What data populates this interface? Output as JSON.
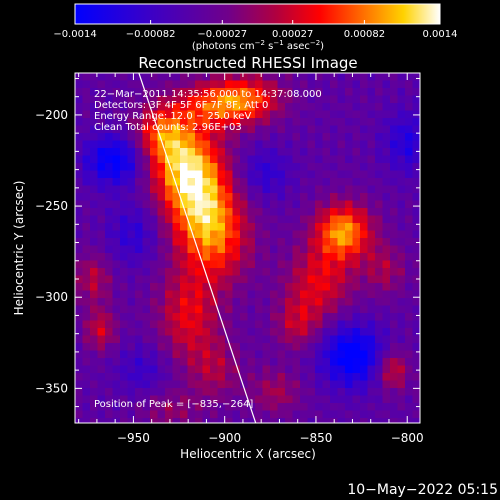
{
  "chart_data": {
    "type": "heatmap",
    "title": "Reconstructed RHESSI Image",
    "xlabel": "Heliocentric X (arcsec)",
    "ylabel": "Heliocentric Y (arcsec)",
    "xlim": [
      -982,
      -793
    ],
    "ylim": [
      -369,
      -177
    ],
    "x_ticks": [
      -950,
      -900,
      -850,
      -800
    ],
    "x_tick_labels": [
      "−950",
      "−900",
      "−850",
      "−800"
    ],
    "y_ticks": [
      -200,
      -250,
      -300,
      -350
    ],
    "y_tick_labels": [
      "−200",
      "−250",
      "−300",
      "−350"
    ],
    "colorbar": {
      "min": -0.0014,
      "max": 0.0014,
      "tick_values": [
        -0.0014,
        -0.00082,
        -0.00027,
        0.00027,
        0.00082,
        0.0014
      ],
      "tick_labels": [
        "−0.0014",
        "−0.00082",
        "−0.00027",
        "0.00027",
        "0.00082",
        "0.0014"
      ],
      "unit_parts": [
        "(photons cm",
        "−2",
        " s",
        "−1",
        " asec",
        "−2",
        ")"
      ]
    },
    "annotations": [
      "22−Mar−2011 14:35:56.000 to 14:37:08.000",
      "Detectors: 3F 4F 5F 6F 7F 8F, Att 0",
      "Energy Range: 12.0 − 25.0 keV",
      "Clean    Total counts: 2.96E+03"
    ],
    "peak_label": "Position of Peak = [−835,−264]",
    "peak": [
      -835,
      -264
    ],
    "peak_value": 0.0014,
    "limb_line": [
      [
        -947,
        -177
      ],
      [
        -883,
        -369
      ]
    ],
    "components": [
      {
        "x": -915,
        "y": -245,
        "sx": 13,
        "sy": 20,
        "amp": 0.0013
      },
      {
        "x": -925,
        "y": -225,
        "sx": 14,
        "sy": 15,
        "amp": 0.001
      },
      {
        "x": -935,
        "y": -210,
        "sx": 10,
        "sy": 10,
        "amp": 0.0008
      },
      {
        "x": -905,
        "y": -195,
        "sx": 18,
        "sy": 9,
        "amp": 0.0009
      },
      {
        "x": -888,
        "y": -190,
        "sx": 14,
        "sy": 9,
        "amp": 0.0008
      },
      {
        "x": -903,
        "y": -268,
        "sx": 13,
        "sy": 18,
        "amp": 0.0009
      },
      {
        "x": -920,
        "y": -310,
        "sx": 12,
        "sy": 18,
        "amp": 0.0008
      },
      {
        "x": -905,
        "y": -340,
        "sx": 10,
        "sy": 12,
        "amp": 0.0005
      },
      {
        "x": -835,
        "y": -264,
        "sx": 11,
        "sy": 11,
        "amp": 0.0014
      },
      {
        "x": -848,
        "y": -292,
        "sx": 13,
        "sy": 14,
        "amp": 0.0008
      },
      {
        "x": -860,
        "y": -315,
        "sx": 9,
        "sy": 10,
        "amp": 0.0006
      },
      {
        "x": -872,
        "y": -352,
        "sx": 10,
        "sy": 9,
        "amp": 0.0005
      },
      {
        "x": -808,
        "y": -340,
        "sx": 6,
        "sy": 8,
        "amp": 0.0008
      },
      {
        "x": -812,
        "y": -285,
        "sx": 8,
        "sy": 10,
        "amp": 0.0005
      },
      {
        "x": -972,
        "y": -290,
        "sx": 7,
        "sy": 10,
        "amp": 0.0006
      },
      {
        "x": -968,
        "y": -318,
        "sx": 6,
        "sy": 8,
        "amp": 0.0007
      },
      {
        "x": -930,
        "y": -362,
        "sx": 12,
        "sy": 8,
        "amp": 0.0004
      },
      {
        "x": -960,
        "y": -225,
        "sx": 12,
        "sy": 10,
        "amp": -0.001
      },
      {
        "x": -950,
        "y": -265,
        "sx": 10,
        "sy": 12,
        "amp": -0.0005
      },
      {
        "x": -830,
        "y": -332,
        "sx": 12,
        "sy": 12,
        "amp": -0.0011
      },
      {
        "x": -878,
        "y": -232,
        "sx": 10,
        "sy": 10,
        "amp": -0.0005
      },
      {
        "x": -800,
        "y": -215,
        "sx": 9,
        "sy": 12,
        "amp": -0.0006
      },
      {
        "x": -945,
        "y": -340,
        "sx": 10,
        "sy": 10,
        "amp": -0.0004
      }
    ],
    "background": -0.00045,
    "grid": false
  },
  "footer": {
    "timestamp": "10−May−2022 05:15"
  },
  "colors": {
    "background": "#000000",
    "text": "#ffffff",
    "limb_line": "#ffffff"
  }
}
